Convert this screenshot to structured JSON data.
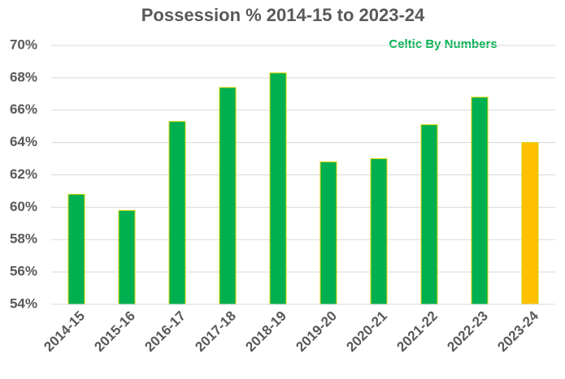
{
  "chart_data": {
    "type": "bar",
    "title": "Possession % 2014-15 to 2023-24",
    "annotation": "Celtic By Numbers",
    "categories": [
      "2014-15",
      "2015-16",
      "2016-17",
      "2017-18",
      "2018-19",
      "2019-20",
      "2020-21",
      "2021-22",
      "2022-23",
      "2023-24"
    ],
    "values": [
      60.8,
      59.8,
      65.3,
      67.4,
      68.3,
      62.8,
      63.0,
      65.1,
      66.8,
      64.0
    ],
    "colors": [
      "#00b050",
      "#00b050",
      "#00b050",
      "#00b050",
      "#00b050",
      "#00b050",
      "#00b050",
      "#00b050",
      "#00b050",
      "#ffc000"
    ],
    "ylim": [
      54,
      70
    ],
    "yticks": [
      {
        "value": 54,
        "label": "54%"
      },
      {
        "value": 56,
        "label": "56%"
      },
      {
        "value": 58,
        "label": "58%"
      },
      {
        "value": 60,
        "label": "60%"
      },
      {
        "value": 62,
        "label": "62%"
      },
      {
        "value": 64,
        "label": "64%"
      },
      {
        "value": 66,
        "label": "66%"
      },
      {
        "value": 68,
        "label": "68%"
      },
      {
        "value": 70,
        "label": "70%"
      }
    ],
    "grid": true
  }
}
